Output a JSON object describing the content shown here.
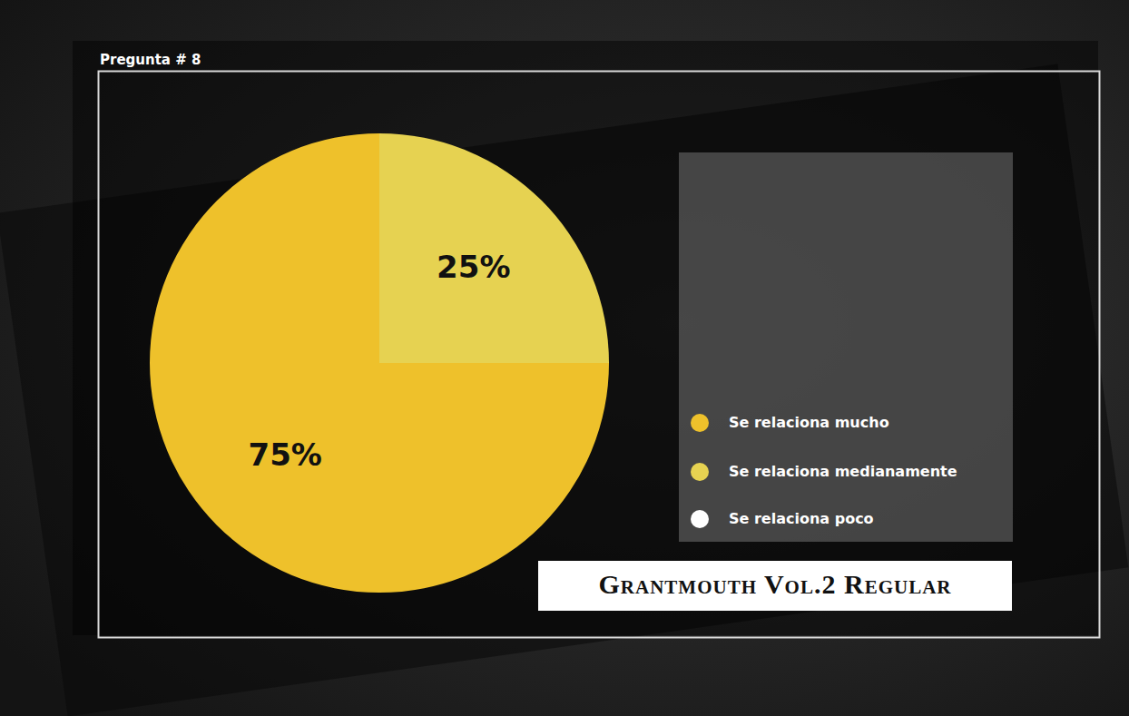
{
  "chart_data": {
    "type": "pie",
    "title": "Pregunta # 8",
    "categories": [
      "Se relaciona mucho",
      "Se relaciona medianamente",
      "Se relaciona poco"
    ],
    "values": [
      75,
      25,
      0
    ],
    "value_labels": [
      "75%",
      "25%",
      null
    ],
    "colors": [
      "#eec12b",
      "#e6d251",
      "#ffffff"
    ],
    "data_labels": true,
    "legend": "right",
    "annotation": "Grantmouth Vol.2 Regular"
  }
}
